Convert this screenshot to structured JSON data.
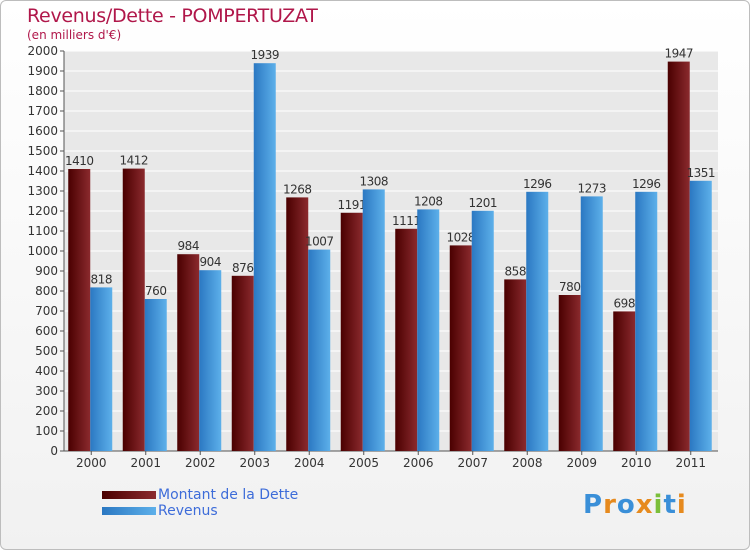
{
  "title": "Revenus/Dette - POMPERTUZAT",
  "subtitle": "(en milliers d'€)",
  "colors": {
    "dette_dark": "#4a0000",
    "dette_light": "#8b2a2e",
    "revenus_dark": "#2b78c2",
    "revenus_light": "#5db0ea",
    "title": "#b0174a",
    "legend_text": "#3d6cd9"
  },
  "chart_data": {
    "type": "bar",
    "title": "Revenus/Dette - POMPERTUZAT",
    "subtitle": "(en milliers d'€)",
    "categories": [
      "2000",
      "2001",
      "2002",
      "2003",
      "2004",
      "2005",
      "2006",
      "2007",
      "2008",
      "2009",
      "2010",
      "2011"
    ],
    "series": [
      {
        "name": "Montant de la Dette",
        "values": [
          1410,
          1412,
          984,
          876,
          1268,
          1191,
          1111,
          1028,
          858,
          780,
          698,
          1947
        ]
      },
      {
        "name": "Revenus",
        "values": [
          818,
          760,
          904,
          1939,
          1007,
          1308,
          1208,
          1201,
          1296,
          1273,
          1296,
          1351
        ]
      }
    ],
    "ylim": [
      0,
      2000
    ],
    "yticks": [
      0,
      100,
      200,
      300,
      400,
      500,
      600,
      700,
      800,
      900,
      1000,
      1100,
      1200,
      1300,
      1400,
      1500,
      1600,
      1700,
      1800,
      1900,
      2000
    ],
    "grid": true,
    "legend_position": "bottom-left"
  },
  "legend": {
    "dette_label": "Montant de la Dette",
    "revenus_label": "Revenus"
  },
  "logo": {
    "letters": [
      "P",
      "r",
      "o",
      "x",
      "i",
      "t",
      "i"
    ],
    "colors": [
      "#3a8fd8",
      "#e68a1e",
      "#3a8fd8",
      "#e68a1e",
      "#7bbf3a",
      "#3a8fd8",
      "#e68a1e"
    ]
  }
}
